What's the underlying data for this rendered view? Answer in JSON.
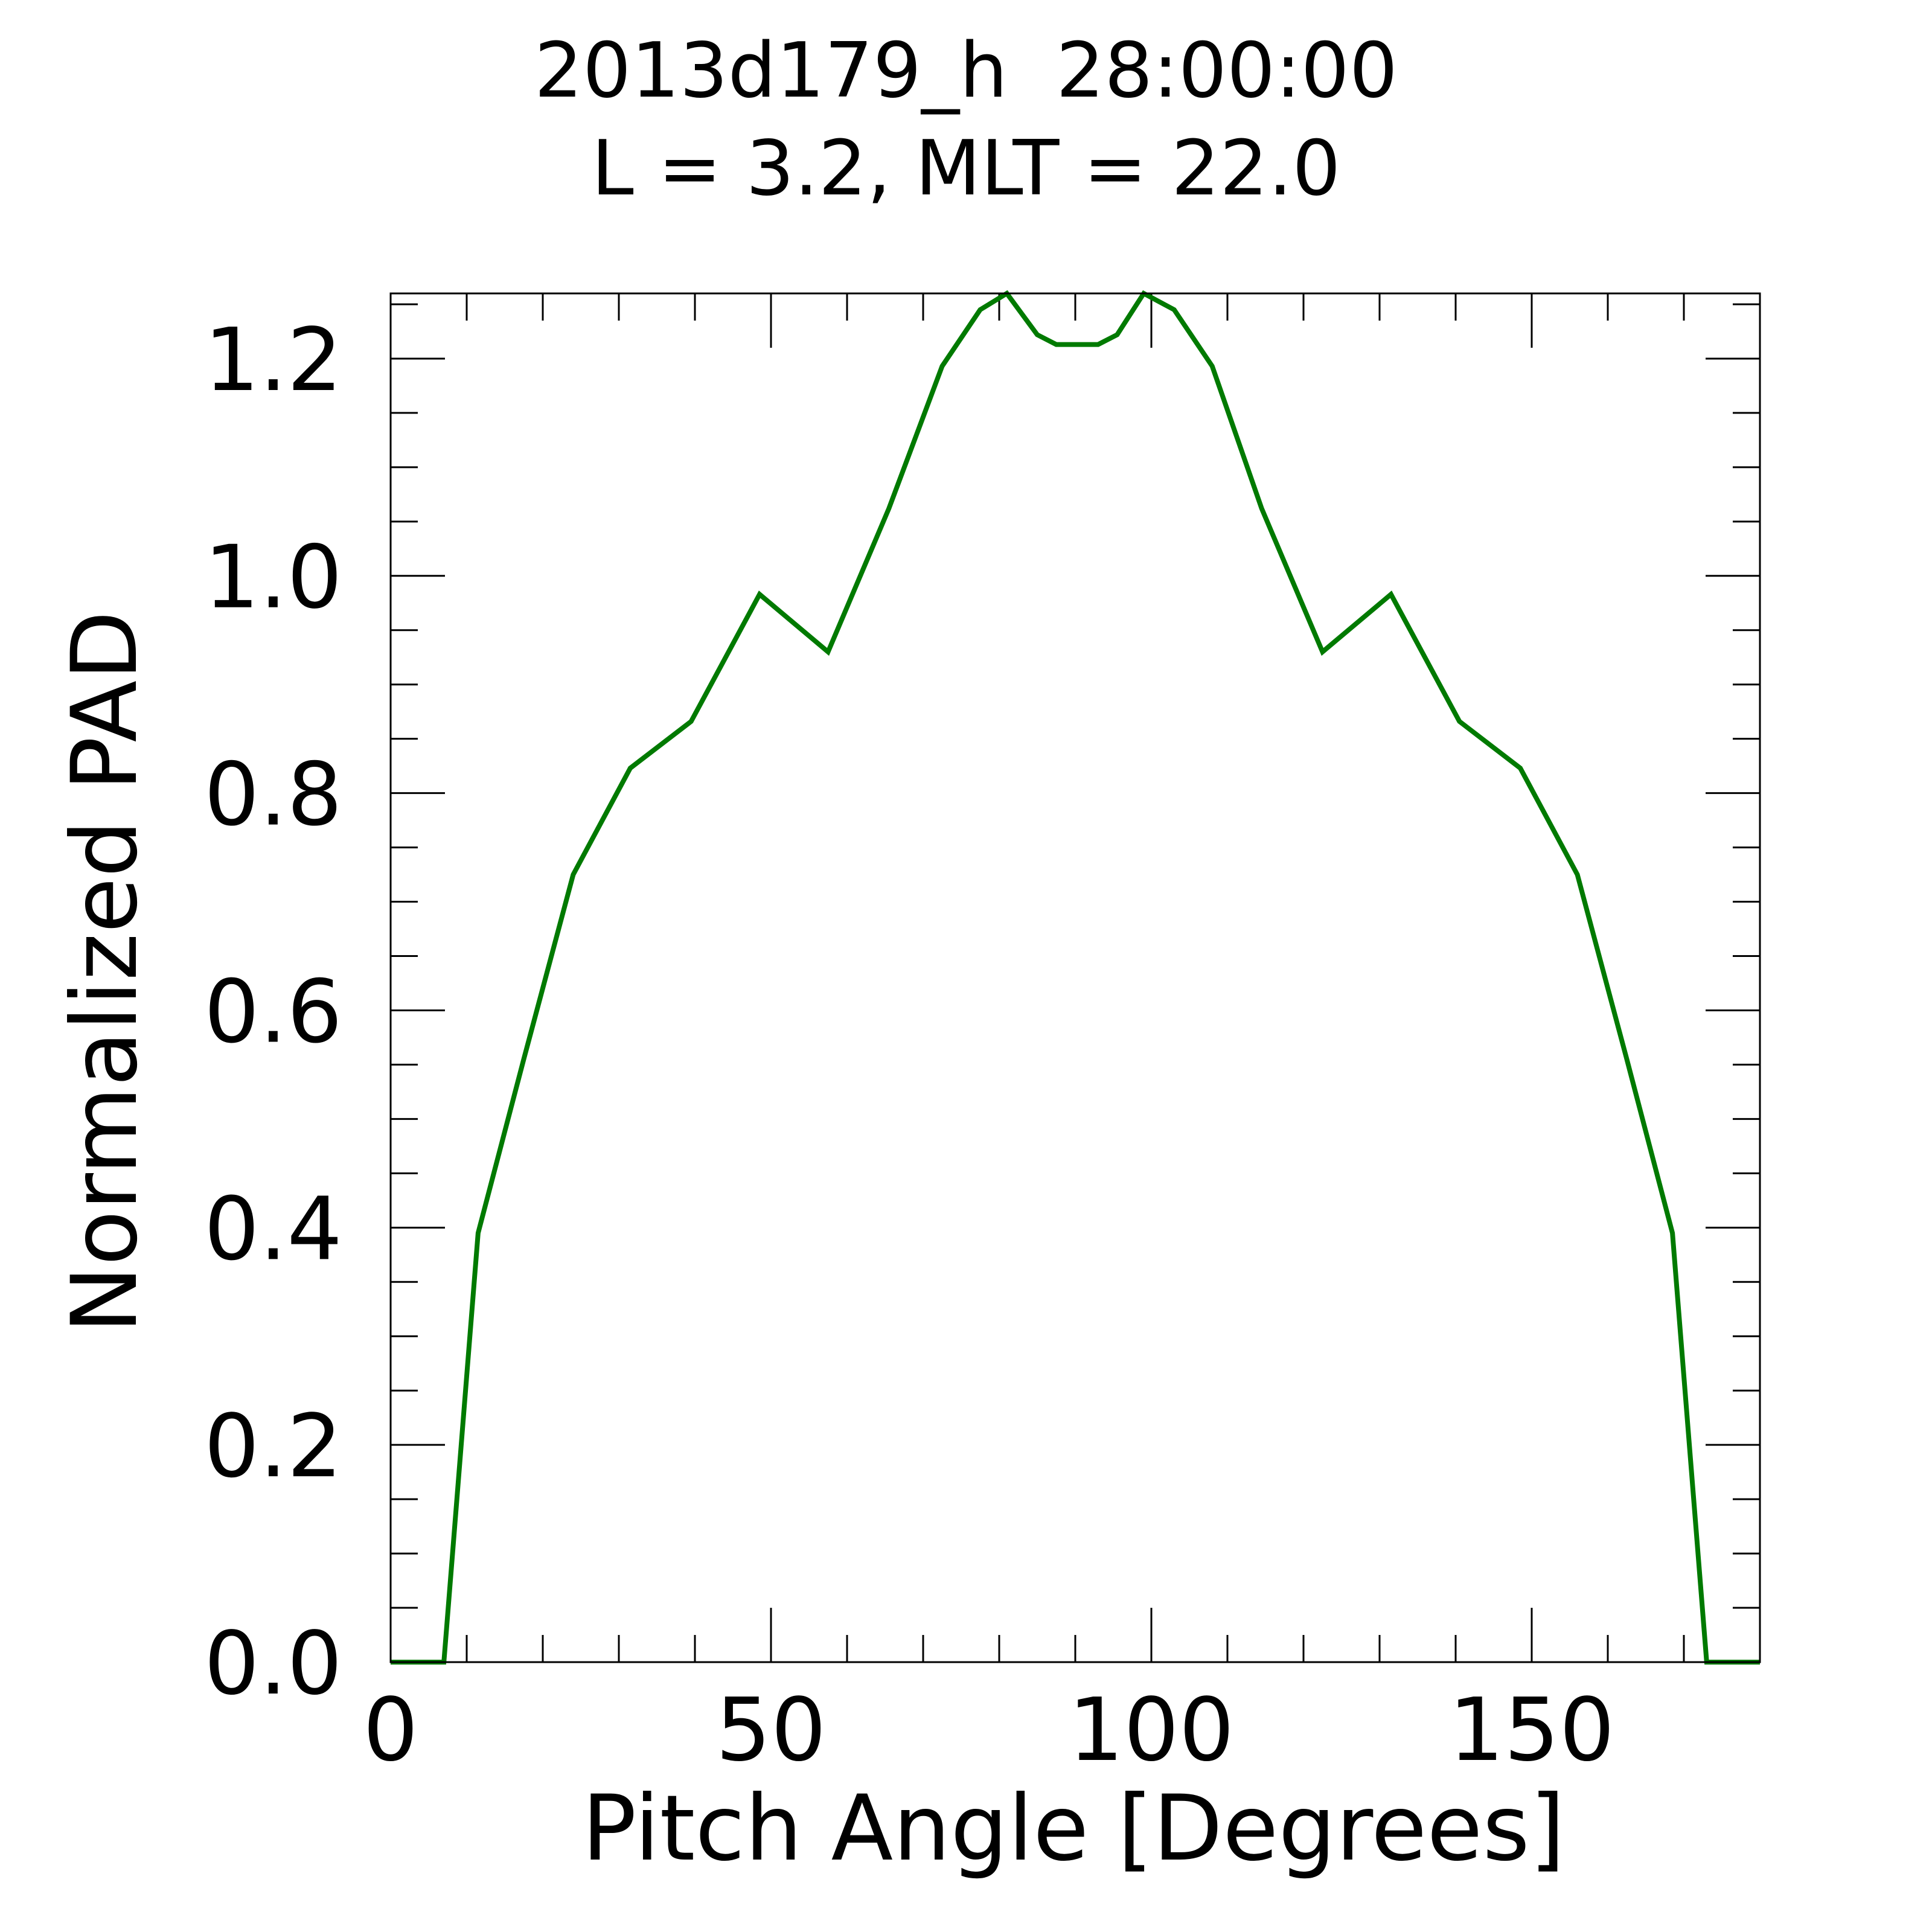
{
  "chart_data": {
    "type": "line",
    "title": "2013d179_h  28:00:00",
    "subtitle": "L = 3.2, MLT = 22.0",
    "xlabel": "Pitch Angle [Degrees]",
    "ylabel": "Normalized PAD",
    "xlim": [
      0,
      180
    ],
    "ylim": [
      0,
      1.26
    ],
    "x_major_ticks": [
      0,
      50,
      100,
      150
    ],
    "x_tick_labels": [
      "0",
      "50",
      "100",
      "150"
    ],
    "x_minor_step": 10,
    "y_major_ticks": [
      0,
      0.2,
      0.4,
      0.6,
      0.8,
      1.0,
      1.2
    ],
    "y_tick_labels": [
      "0.0",
      "0.2",
      "0.4",
      "0.6",
      "0.8",
      "1.0",
      "1.2"
    ],
    "y_minor_step": 0.05,
    "grid": false,
    "series": [
      {
        "color": "#007a00",
        "x": [
          0,
          7,
          11.5,
          17.5,
          24,
          31.5,
          39.5,
          48.5,
          57.5,
          65.5,
          72.5,
          77.5,
          81,
          85,
          87.5,
          93,
          95.5,
          99,
          103,
          108,
          114.5,
          122.5,
          131.5,
          140.5,
          148.5,
          156,
          162.5,
          168.5,
          173,
          180
        ],
        "y": [
          0,
          0,
          0.395,
          0.555,
          0.725,
          0.823,
          0.866,
          0.983,
          0.93,
          1.062,
          1.193,
          1.245,
          1.26,
          1.222,
          1.213,
          1.213,
          1.222,
          1.26,
          1.245,
          1.193,
          1.062,
          0.93,
          0.983,
          0.866,
          0.823,
          0.725,
          0.555,
          0.395,
          0,
          0
        ]
      }
    ]
  }
}
